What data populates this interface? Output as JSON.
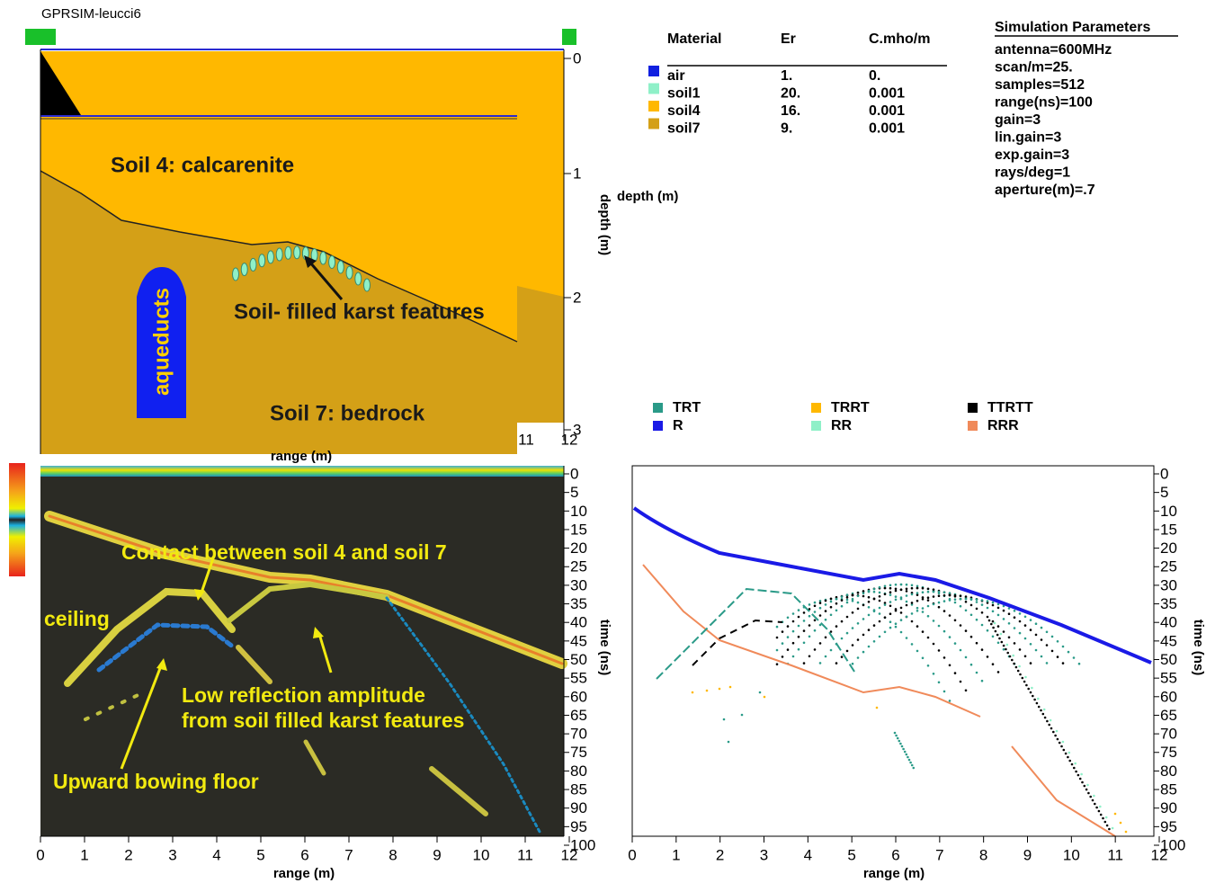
{
  "model": {
    "title": "GPRSIM-leucci6",
    "depth_label": "depth (m)",
    "depth_axis_title": "depth (m)",
    "depth_ticks": [
      "0",
      "1",
      "2",
      "3"
    ],
    "range_ticks": [
      "11",
      "12"
    ],
    "range_label": "range (m)",
    "annotations": [
      "Soil 4: calcarenite",
      "Soil- filled karst features",
      "aqueducts",
      "Soil 7: bedrock"
    ]
  },
  "materials": {
    "headers": [
      "Material",
      "Er",
      "C.mho/m"
    ],
    "rows": [
      {
        "color": "#1020e0",
        "cells": [
          "air",
          "1.",
          "0."
        ]
      },
      {
        "color": "#8ff0c8",
        "cells": [
          "soil1",
          "20.",
          "0.001"
        ]
      },
      {
        "color": "#ffb800",
        "cells": [
          "soil4",
          "16.",
          "0.001"
        ]
      },
      {
        "color": "#d4a017",
        "cells": [
          "soil7",
          "9.",
          "0.001"
        ]
      }
    ]
  },
  "simulation": {
    "title": "Simulation  Parameters",
    "lines": [
      "antenna=600MHz",
      "scan/m=25.",
      "samples=512",
      "range(ns)=100",
      "gain=3",
      "lin.gain=3",
      "exp.gain=3",
      "rays/deg=1",
      "aperture(m)=.7"
    ]
  },
  "radargram": {
    "annotations": [
      "Contact between soil 4 and soil 7",
      "ceiling",
      "Low reflection amplitude",
      "from soil filled karst features",
      "Upward bowing floor"
    ],
    "time_ticks": [
      "0",
      "5",
      "10",
      "15",
      "20",
      "25",
      "30",
      "35",
      "40",
      "45",
      "50",
      "55",
      "60",
      "65",
      "70",
      "75",
      "80",
      "85",
      "90",
      "95",
      "100"
    ],
    "range_ticks": [
      "0",
      "1",
      "2",
      "3",
      "4",
      "5",
      "6",
      "7",
      "8",
      "9",
      "10",
      "11",
      "12"
    ],
    "x_label": "range (m)",
    "y_label": "time (ns)"
  },
  "raytrace": {
    "legend": [
      {
        "name": "TRT",
        "color": "#2a9a88"
      },
      {
        "name": "TRRT",
        "color": "#ffb800"
      },
      {
        "name": "TTRTT",
        "color": "#000000"
      },
      {
        "name": "R",
        "color": "#1a1ae6"
      },
      {
        "name": "RR",
        "color": "#8ff0c8"
      },
      {
        "name": "RRR",
        "color": "#f08a5a"
      }
    ],
    "time_ticks": [
      "0",
      "5",
      "10",
      "15",
      "20",
      "25",
      "30",
      "35",
      "40",
      "45",
      "50",
      "55",
      "60",
      "65",
      "70",
      "75",
      "80",
      "85",
      "90",
      "95",
      "100"
    ],
    "range_ticks": [
      "0",
      "1",
      "2",
      "3",
      "4",
      "5",
      "6",
      "7",
      "8",
      "9",
      "10",
      "11",
      "12"
    ],
    "x_label": "range (m)",
    "y_label": "time (ns)"
  }
}
